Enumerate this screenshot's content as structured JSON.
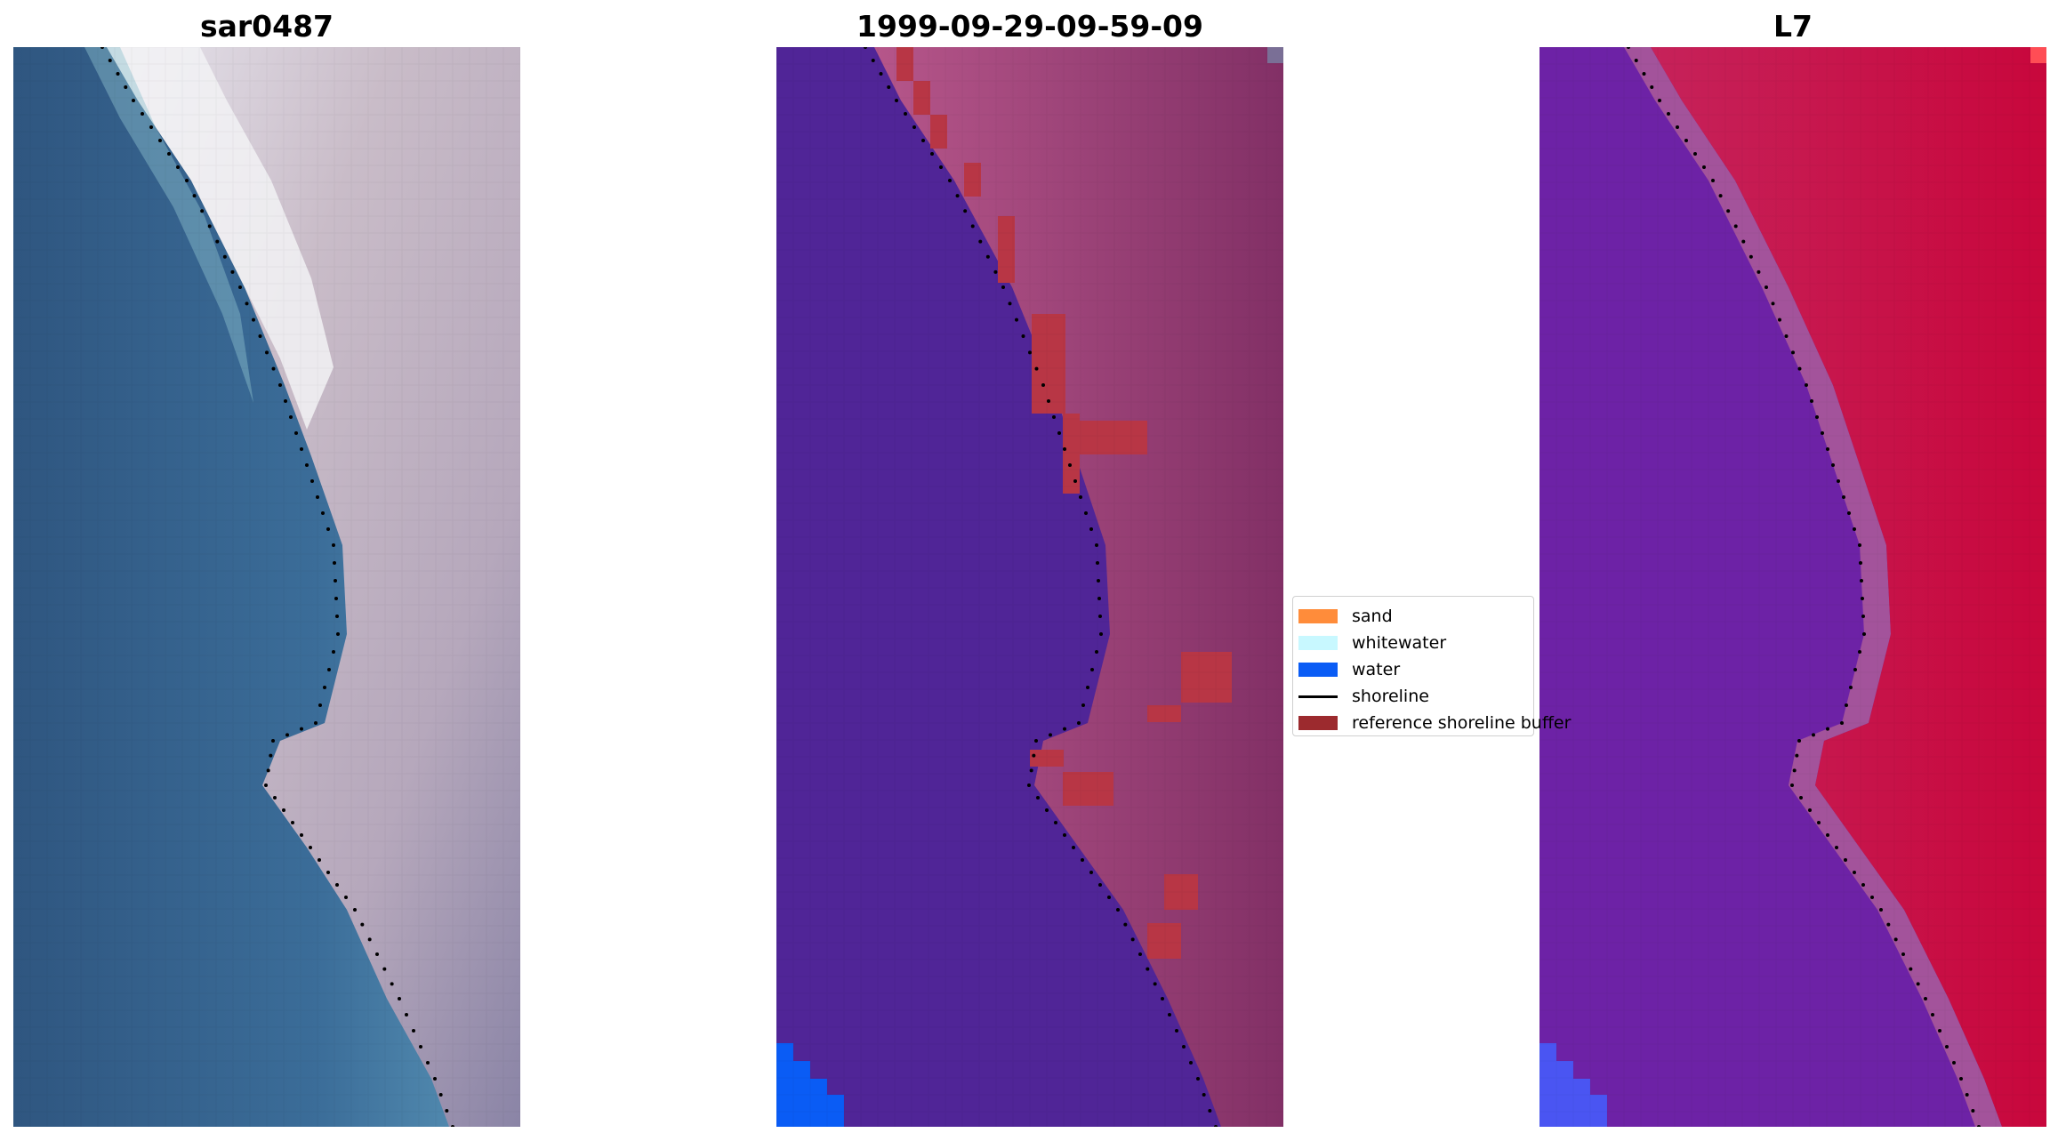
{
  "figure": {
    "panels": [
      {
        "id": "rgb",
        "title": "sar0487"
      },
      {
        "id": "classification",
        "title": "1999-09-29-09-59-09"
      },
      {
        "id": "mndwi",
        "title": "L7"
      }
    ],
    "legend": {
      "items": [
        {
          "label": "sand",
          "color": "#ff8c3a",
          "kind": "patch"
        },
        {
          "label": "whitewater",
          "color": "#c8f8ff",
          "kind": "patch"
        },
        {
          "label": "water",
          "color": "#0a5cf5",
          "kind": "patch"
        },
        {
          "label": "shoreline",
          "color": "#000000",
          "kind": "line"
        },
        {
          "label": "reference shoreline buffer",
          "color": "#9c2a2e",
          "kind": "patch"
        }
      ]
    },
    "colors": {
      "sea_rgb_deep": "#2f5784",
      "sea_rgb_shallow": "#4c8ab0",
      "land_rgb": "#c7bfc8",
      "class_sea": "#502597",
      "class_land": "#a8487c",
      "class_water_patch": "#0a5cf5",
      "class_buffer": "#b83645",
      "mndwi_sea": "#6e21a8",
      "mndwi_land": "#cc1a45",
      "mndwi_water_patch": "#4a55f2"
    }
  }
}
